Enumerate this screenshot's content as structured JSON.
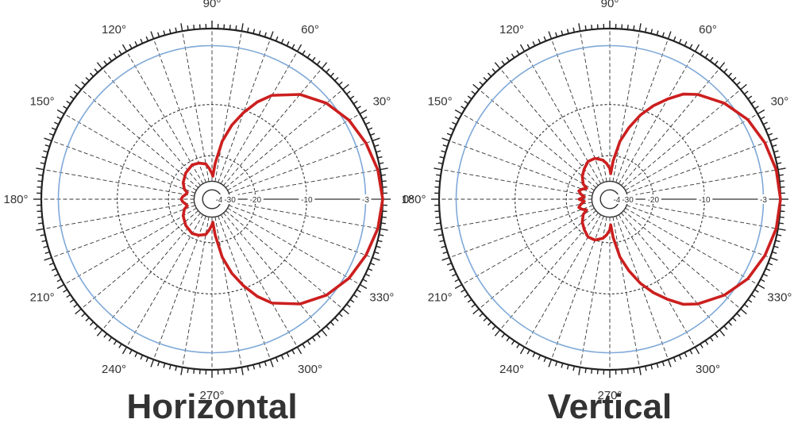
{
  "chart_data": [
    {
      "type": "polar",
      "title": "Horizontal",
      "angle_labels": [
        "0°",
        "30°",
        "60°",
        "90°",
        "120°",
        "150°",
        "180°",
        "210°",
        "240°",
        "270°",
        "300°",
        "330°"
      ],
      "rings": [
        {
          "value": -40,
          "label": "-40"
        },
        {
          "value": -30,
          "label": "-30"
        },
        {
          "value": -20,
          "label": "-20"
        },
        {
          "value": -10,
          "label": "-10"
        },
        {
          "value": -3,
          "label": "-3"
        },
        {
          "value": 0,
          "label": ""
        }
      ],
      "rlim": [
        -40,
        0
      ],
      "series": [
        {
          "angle_deg": [
            0,
            10,
            20,
            30,
            40,
            50,
            60,
            65,
            70,
            75,
            80,
            85,
            88,
            90,
            95,
            100,
            110,
            120,
            135,
            150,
            160,
            165,
            170,
            175,
            180,
            185,
            190,
            195,
            200,
            210,
            225,
            240,
            250,
            260,
            265,
            270,
            272,
            275,
            280,
            285,
            290,
            295,
            300,
            310,
            320,
            330,
            340,
            350,
            360
          ],
          "gain_db": [
            0,
            -0.4,
            -1.2,
            -2.2,
            -3.5,
            -5,
            -7,
            -8.5,
            -10.5,
            -13.5,
            -17,
            -23,
            -28,
            -27,
            -25,
            -23,
            -22,
            -21.5,
            -22.5,
            -24,
            -25.5,
            -27,
            -26.5,
            -25.5,
            -25,
            -25.5,
            -26.5,
            -27,
            -25.5,
            -24,
            -22.5,
            -21.5,
            -22,
            -23,
            -25,
            -27,
            -28,
            -23,
            -17,
            -13.5,
            -10.5,
            -8.5,
            -7,
            -5,
            -3.5,
            -2.2,
            -1.2,
            -0.4,
            0
          ]
        }
      ]
    },
    {
      "type": "polar",
      "title": "Vertical",
      "angle_labels": [
        "0",
        "30°",
        "60°",
        "90°",
        "120°",
        "150°",
        "180°",
        "210°",
        "240°",
        "270°",
        "300°",
        "330°"
      ],
      "rings": [
        {
          "value": -40,
          "label": "-40"
        },
        {
          "value": -30,
          "label": "-30"
        },
        {
          "value": -20,
          "label": "-20"
        },
        {
          "value": -10,
          "label": "-10"
        },
        {
          "value": -3,
          "label": "-3"
        },
        {
          "value": 0,
          "label": ""
        }
      ],
      "rlim": [
        -40,
        0
      ],
      "series": [
        {
          "angle_deg": [
            0,
            10,
            20,
            30,
            40,
            50,
            55,
            60,
            65,
            70,
            75,
            80,
            85,
            88,
            90,
            95,
            100,
            110,
            120,
            130,
            140,
            150,
            155,
            160,
            165,
            170,
            175,
            180,
            185,
            190,
            195,
            200,
            205,
            210,
            220,
            230,
            240,
            250,
            260,
            265,
            270,
            272,
            275,
            280,
            285,
            290,
            295,
            300,
            305,
            310,
            320,
            330,
            340,
            350,
            360
          ],
          "gain_db": [
            0,
            -0.3,
            -1,
            -2,
            -3.5,
            -5,
            -6,
            -7.5,
            -9,
            -11,
            -14,
            -17,
            -22,
            -27,
            -25,
            -23,
            -21.5,
            -20,
            -20,
            -21.5,
            -23,
            -25,
            -27,
            -25.5,
            -24.5,
            -25.5,
            -27,
            -25,
            -27,
            -25.5,
            -24.5,
            -25.5,
            -27,
            -25,
            -23,
            -21.5,
            -20,
            -20,
            -21.5,
            -23,
            -25,
            -27,
            -22,
            -17,
            -14,
            -11,
            -9,
            -7.5,
            -6,
            -5,
            -3.5,
            -2,
            -1,
            -0.3,
            0
          ]
        }
      ]
    }
  ],
  "colors": {
    "pattern": "#cc1f1f",
    "reference_circle": "#7fa9d8",
    "grid": "#333333",
    "outer_scale": "#222222",
    "text": "#333333"
  }
}
